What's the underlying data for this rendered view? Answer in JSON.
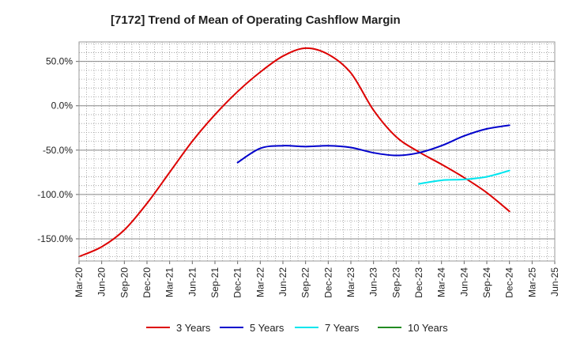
{
  "chart_data": {
    "type": "line",
    "title": "[7172]  Trend of Mean of Operating Cashflow Margin",
    "xlabel": "",
    "ylabel": "",
    "x_ticks": [
      "Mar-20",
      "Jun-20",
      "Sep-20",
      "Dec-20",
      "Mar-21",
      "Jun-21",
      "Sep-21",
      "Dec-21",
      "Mar-22",
      "Jun-22",
      "Sep-22",
      "Dec-22",
      "Mar-23",
      "Jun-23",
      "Sep-23",
      "Dec-23",
      "Mar-24",
      "Jun-24",
      "Sep-24",
      "Dec-24",
      "Mar-25",
      "Jun-25"
    ],
    "y_ticks": [
      50,
      0,
      -50,
      -100,
      -150
    ],
    "y_tick_labels": [
      "50.0%",
      "0.0%",
      "-50.0%",
      "-100.0%",
      "-150.0%"
    ],
    "ylim": [
      -175,
      72
    ],
    "grid": true,
    "legend_position": "bottom",
    "series": [
      {
        "name": "3 Years",
        "color": "#dd0000",
        "points": [
          {
            "x": "Mar-20",
            "y": -170
          },
          {
            "x": "Jun-20",
            "y": -159
          },
          {
            "x": "Sep-20",
            "y": -140
          },
          {
            "x": "Dec-20",
            "y": -110
          },
          {
            "x": "Mar-21",
            "y": -75
          },
          {
            "x": "Jun-21",
            "y": -40
          },
          {
            "x": "Sep-21",
            "y": -10
          },
          {
            "x": "Dec-21",
            "y": 16
          },
          {
            "x": "Mar-22",
            "y": 38
          },
          {
            "x": "Jun-22",
            "y": 56
          },
          {
            "x": "Sep-22",
            "y": 65
          },
          {
            "x": "Dec-22",
            "y": 58
          },
          {
            "x": "Mar-23",
            "y": 37
          },
          {
            "x": "Jun-23",
            "y": -5
          },
          {
            "x": "Sep-23",
            "y": -35
          },
          {
            "x": "Dec-23",
            "y": -52
          },
          {
            "x": "Mar-24",
            "y": -66
          },
          {
            "x": "Jun-24",
            "y": -81
          },
          {
            "x": "Sep-24",
            "y": -98
          },
          {
            "x": "Dec-24",
            "y": -119
          }
        ]
      },
      {
        "name": "5 Years",
        "color": "#0000cc",
        "points": [
          {
            "x": "Dec-21",
            "y": -64
          },
          {
            "x": "Mar-22",
            "y": -48
          },
          {
            "x": "Jun-22",
            "y": -45
          },
          {
            "x": "Sep-22",
            "y": -46
          },
          {
            "x": "Dec-22",
            "y": -45
          },
          {
            "x": "Mar-23",
            "y": -47
          },
          {
            "x": "Jun-23",
            "y": -53
          },
          {
            "x": "Sep-23",
            "y": -56
          },
          {
            "x": "Dec-23",
            "y": -53
          },
          {
            "x": "Mar-24",
            "y": -45
          },
          {
            "x": "Jun-24",
            "y": -34
          },
          {
            "x": "Sep-24",
            "y": -26
          },
          {
            "x": "Dec-24",
            "y": -22
          }
        ]
      },
      {
        "name": "7 Years",
        "color": "#00e5ee",
        "points": [
          {
            "x": "Dec-23",
            "y": -88
          },
          {
            "x": "Mar-24",
            "y": -84
          },
          {
            "x": "Jun-24",
            "y": -83
          },
          {
            "x": "Sep-24",
            "y": -80
          },
          {
            "x": "Dec-24",
            "y": -73
          }
        ]
      },
      {
        "name": "10 Years",
        "color": "#228b22",
        "points": []
      }
    ]
  }
}
